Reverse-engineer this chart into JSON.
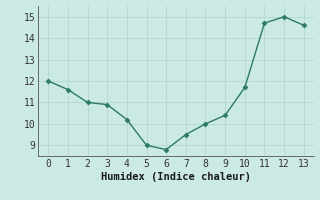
{
  "x": [
    0,
    1,
    2,
    3,
    4,
    5,
    6,
    7,
    8,
    9,
    10,
    11,
    12,
    13
  ],
  "y": [
    12.0,
    11.6,
    11.0,
    10.9,
    10.2,
    9.0,
    8.8,
    9.5,
    10.0,
    10.4,
    11.7,
    14.7,
    15.0,
    14.6
  ],
  "line_color": "#2d7a6a",
  "marker": "D",
  "marker_size": 2.5,
  "line_width": 1.0,
  "background_color": "#cceae4",
  "grid_color": "#b8d8d2",
  "xlabel": "Humidex (Indice chaleur)",
  "xlabel_fontsize": 7.5,
  "tick_fontsize": 7,
  "xlim": [
    -0.5,
    13.5
  ],
  "ylim": [
    8.5,
    15.5
  ],
  "yticks": [
    9,
    10,
    11,
    12,
    13,
    14,
    15
  ],
  "xticks": [
    0,
    1,
    2,
    3,
    4,
    5,
    6,
    7,
    8,
    9,
    10,
    11,
    12,
    13
  ]
}
